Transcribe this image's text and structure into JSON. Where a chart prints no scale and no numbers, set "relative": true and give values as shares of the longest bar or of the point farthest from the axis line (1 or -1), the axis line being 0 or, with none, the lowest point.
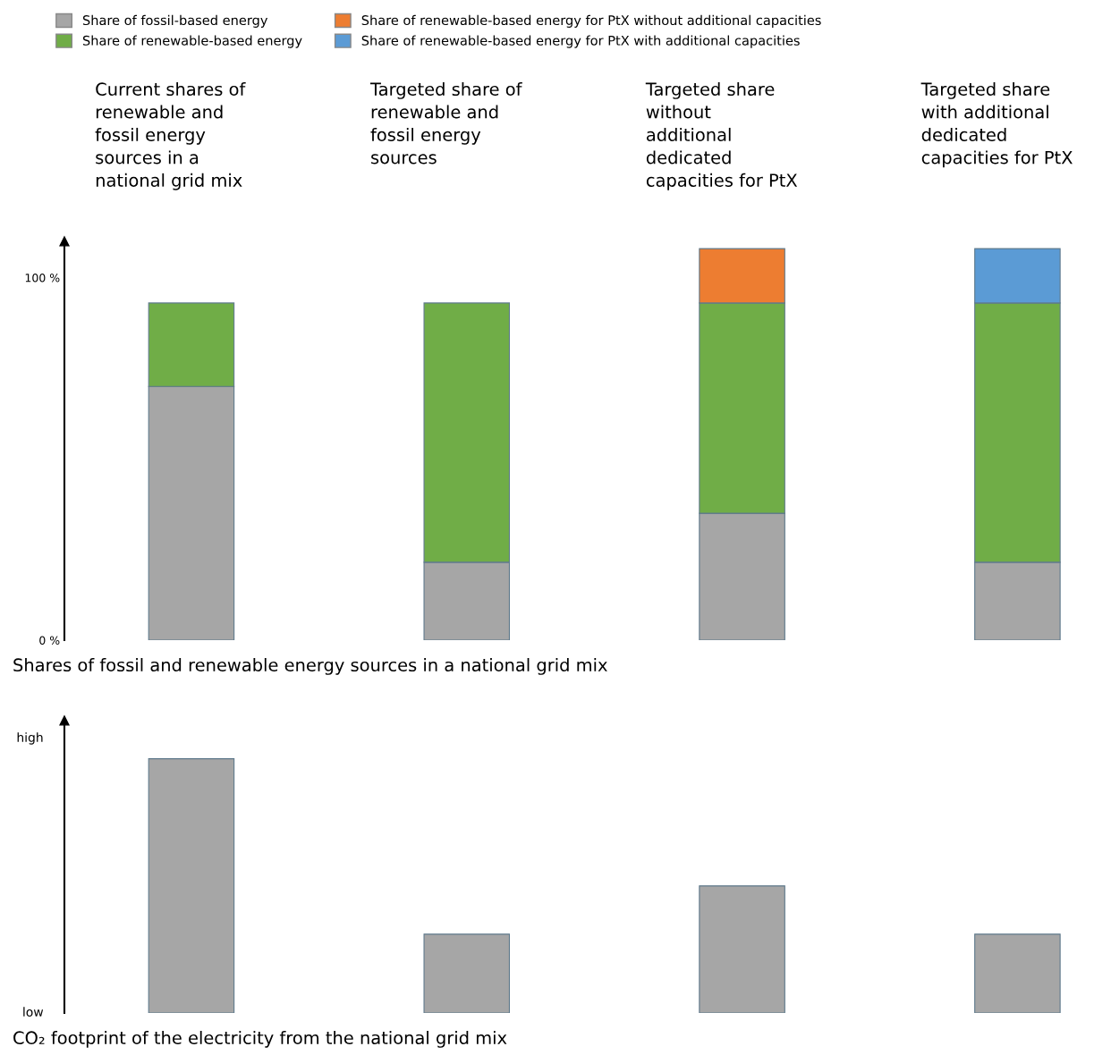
{
  "chart_data": [
    {
      "type": "bar",
      "stacked": true,
      "categories": [
        "Current shares of\nrenewable and\nfossil energy\nsources in a\nnational grid mix",
        "Targeted share of\nrenewable and\nfossil energy\nsources",
        "Targeted share\nwithout\nadditional\ndedicated\ncapacities for PtX",
        "Targeted share\nwith additional\ndedicated\ncapacities for PtX"
      ],
      "series": [
        {
          "name": "Share of fossil-based energy",
          "color": "#a6a6a6",
          "values": [
            70,
            21.5,
            35,
            21.5
          ]
        },
        {
          "name": "Share of renewable-based energy",
          "color": "#70ad47",
          "values": [
            23,
            71.5,
            58,
            71.5
          ]
        },
        {
          "name": "Share of renewable-based energy for PtX without additional capacities",
          "color": "#ed7d31",
          "values": [
            null,
            null,
            15,
            null
          ]
        },
        {
          "name": "Share of renewable-based energy for PtX with additional capacities",
          "color": "#5b9bd5",
          "values": [
            null,
            null,
            null,
            15
          ]
        }
      ],
      "ylim": [
        0,
        110
      ],
      "yticks": [
        {
          "value": 0,
          "label": "0 %"
        },
        {
          "value": 100,
          "label": "100 %"
        }
      ],
      "tick_labels": "y",
      "legend": "top",
      "xlabel": "Shares of fossil and renewable energy sources in a national grid mix"
    },
    {
      "type": "bar",
      "relative": true,
      "categories": [
        null,
        null,
        null,
        null
      ],
      "series": [
        {
          "color": "#a6a6a6",
          "values": [
            1,
            0.31,
            0.5,
            0.31
          ]
        }
      ],
      "annotations": [
        "low",
        "high"
      ],
      "xlabel": "CO₂ footprint of the electricity from the national grid mix"
    }
  ]
}
